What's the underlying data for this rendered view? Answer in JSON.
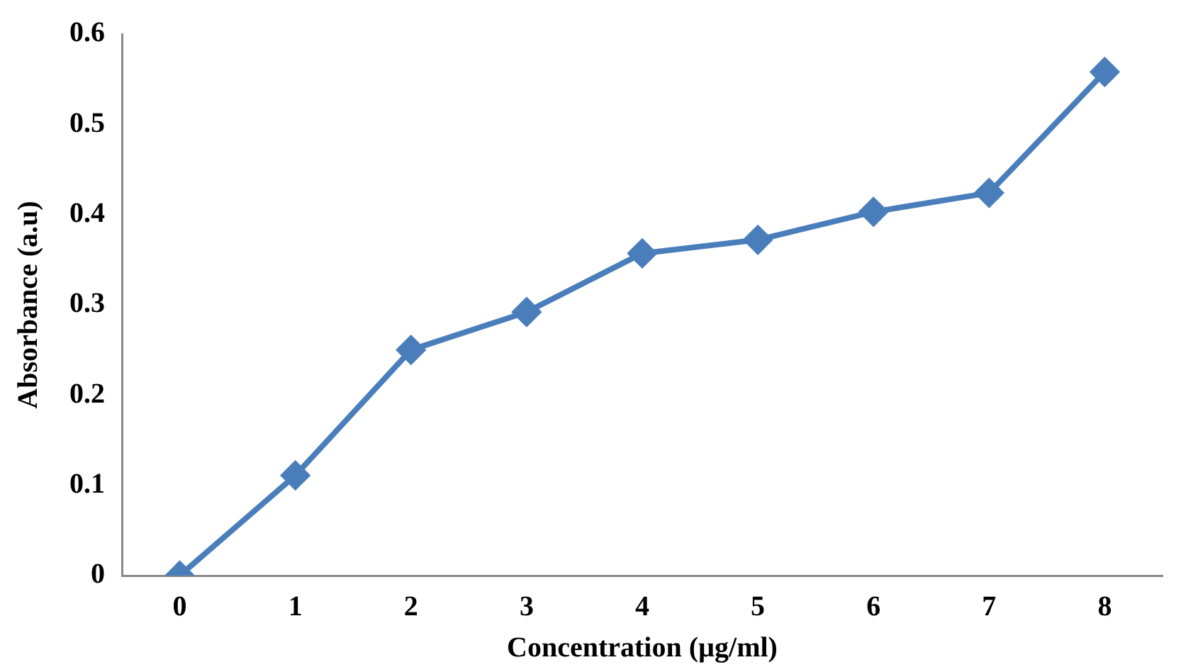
{
  "chart_data": {
    "type": "line",
    "xlabel": "Concentration (µg/ml)",
    "ylabel": "Absorbance (a.u)",
    "categories": [
      "0",
      "1",
      "2",
      "3",
      "4",
      "5",
      "6",
      "7",
      "8"
    ],
    "series": [
      {
        "color": "#4a7ebb",
        "values": [
          0,
          0.111,
          0.25,
          0.292,
          0.357,
          0.372,
          0.403,
          0.424,
          0.558
        ]
      }
    ],
    "ylim": [
      0,
      0.6
    ],
    "yticks": [
      0,
      0.1,
      0.2,
      0.3,
      0.4,
      0.5,
      0.6
    ],
    "grid": false,
    "legend": false,
    "marker": "diamond",
    "line_style": "solid"
  }
}
